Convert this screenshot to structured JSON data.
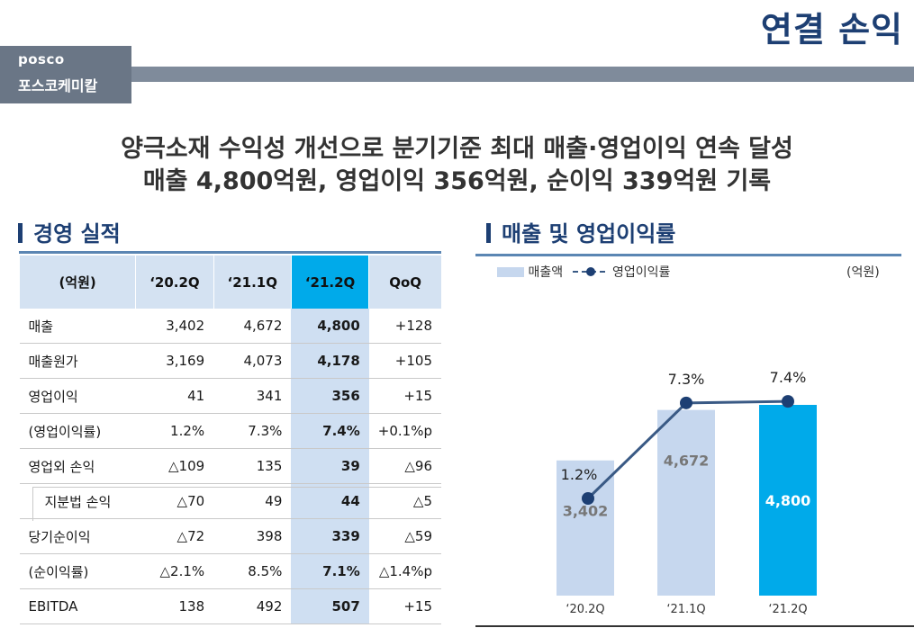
{
  "page_title": "연결 손익",
  "logo": {
    "en": "posco",
    "kr": "포스코케미칼"
  },
  "headline": {
    "line1": "양극소재 수익성 개선으로 분기기준 최대 매출·영업이익 연속 달성",
    "line2": "매출 4,800억원, 영업이익 356억원, 순이익 339억원 기록"
  },
  "table_section_title": "경영 실적",
  "chart_section_title": "매출 및 영업이익률",
  "table": {
    "headers": [
      "(억원)",
      "‘20.2Q",
      "‘21.1Q",
      "‘21.2Q",
      "QoQ"
    ],
    "rows": [
      {
        "label": "매출",
        "v1": "3,402",
        "v2": "4,672",
        "v3": "4,800",
        "qoq": "+128",
        "sub": false
      },
      {
        "label": "매출원가",
        "v1": "3,169",
        "v2": "4,073",
        "v3": "4,178",
        "qoq": "+105",
        "sub": false
      },
      {
        "label": "영업이익",
        "v1": "41",
        "v2": "341",
        "v3": "356",
        "qoq": "+15",
        "sub": false
      },
      {
        "label": "(영업이익률)",
        "v1": "1.2%",
        "v2": "7.3%",
        "v3": "7.4%",
        "qoq": "+0.1%p",
        "sub": false
      },
      {
        "label": "영업외 손익",
        "v1": "△109",
        "v2": "135",
        "v3": "39",
        "qoq": "△96",
        "sub": false
      },
      {
        "label": "지분법 손익",
        "v1": "△70",
        "v2": "49",
        "v3": "44",
        "qoq": "△5",
        "sub": true
      },
      {
        "label": "당기순이익",
        "v1": "△72",
        "v2": "398",
        "v3": "339",
        "qoq": "△59",
        "sub": false
      },
      {
        "label": "(순이익률)",
        "v1": "△2.1%",
        "v2": "8.5%",
        "v3": "7.1%",
        "qoq": "△1.4%p",
        "sub": false
      },
      {
        "label": "EBITDA",
        "v1": "138",
        "v2": "492",
        "v3": "507",
        "qoq": "+15",
        "sub": false
      }
    ]
  },
  "chart_data": {
    "type": "bar",
    "categories": [
      "‘20.2Q",
      "‘21.1Q",
      "‘21.2Q"
    ],
    "series": [
      {
        "name": "매출액",
        "values": [
          3402,
          4672,
          4800
        ],
        "labels": [
          "3,402",
          "4,672",
          "4,800"
        ]
      },
      {
        "name": "영업이익률",
        "type": "line",
        "values": [
          1.2,
          7.3,
          7.4
        ],
        "labels": [
          "1.2%",
          "7.3%",
          "7.4%"
        ]
      }
    ],
    "unit": "(억원)",
    "colors": {
      "bar": "#c6d7ee",
      "bar_highlight": "#00aaea",
      "line": "#3a5a85",
      "marker": "#1d3f73"
    }
  },
  "colors": {
    "title": "#1d3f73",
    "header_bg": "#d4e2f2",
    "highlight": "#00aaea"
  }
}
